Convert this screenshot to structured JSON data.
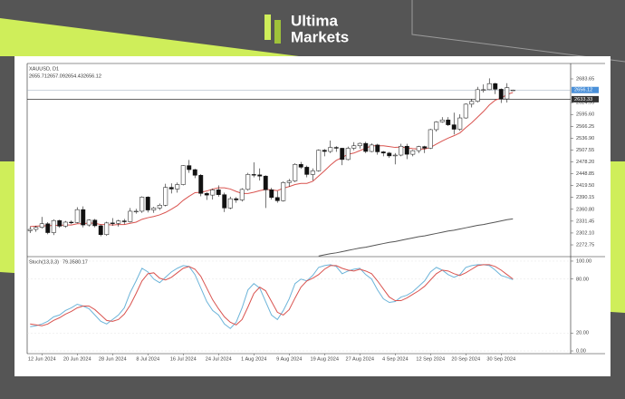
{
  "brand": {
    "line1": "Ultima",
    "line2": "Markets"
  },
  "chart_data": [
    {
      "type": "candlestick",
      "title": "XAUUSD, D1",
      "categories": [
        null,
        null,
        "12 Jun 2024",
        null,
        null,
        null,
        null,
        null,
        "20 Jun 2024",
        null,
        null,
        null,
        null,
        null,
        "28 Jun 2024",
        null,
        null,
        null,
        null,
        null,
        "8 Jul 2024",
        null,
        null,
        null,
        null,
        null,
        "16 Jul 2024",
        null,
        null,
        null,
        null,
        null,
        "24 Jul 2024",
        null,
        null,
        null,
        null,
        null,
        "1 Aug 2024",
        null,
        null,
        null,
        null,
        null,
        "9 Aug 2024",
        null,
        null,
        null,
        null,
        null,
        "19 Aug 2024",
        null,
        null,
        null,
        null,
        null,
        "27 Aug 2024",
        null,
        null,
        null,
        null,
        null,
        "4 Sep 2024",
        null,
        null,
        null,
        null,
        null,
        "12 Sep 2024",
        null,
        null,
        null,
        null,
        null,
        "20 Sep 2024",
        null,
        null,
        null,
        null,
        null,
        "30 Sep 2024",
        null,
        null
      ],
      "ohlc": [
        [
          2308,
          2318,
          2302,
          2311
        ],
        [
          2311,
          2320,
          2305,
          2316
        ],
        [
          2316,
          2342,
          2313,
          2325
        ],
        [
          2325,
          2329,
          2299,
          2303
        ],
        [
          2303,
          2336,
          2297,
          2333
        ],
        [
          2333,
          2335,
          2315,
          2319
        ],
        [
          2319,
          2332,
          2315,
          2329
        ],
        [
          2329,
          2333,
          2324,
          2328
        ],
        [
          2328,
          2366,
          2326,
          2360
        ],
        [
          2360,
          2368,
          2316,
          2322
        ],
        [
          2322,
          2336,
          2318,
          2334
        ],
        [
          2334,
          2337,
          2316,
          2320
        ],
        [
          2320,
          2323,
          2294,
          2298
        ],
        [
          2298,
          2330,
          2295,
          2327
        ],
        [
          2327,
          2339,
          2320,
          2326
        ],
        [
          2326,
          2335,
          2318,
          2332
        ],
        [
          2332,
          2337,
          2324,
          2330
        ],
        [
          2330,
          2364,
          2328,
          2356
        ],
        [
          2356,
          2362,
          2350,
          2356
        ],
        [
          2356,
          2393,
          2352,
          2391
        ],
        [
          2391,
          2393,
          2353,
          2359
        ],
        [
          2359,
          2367,
          2352,
          2364
        ],
        [
          2364,
          2375,
          2359,
          2371
        ],
        [
          2371,
          2424,
          2368,
          2415
        ],
        [
          2415,
          2425,
          2400,
          2411
        ],
        [
          2411,
          2427,
          2402,
          2422
        ],
        [
          2422,
          2470,
          2420,
          2469
        ],
        [
          2469,
          2483,
          2451,
          2459
        ],
        [
          2459,
          2461,
          2438,
          2445
        ],
        [
          2445,
          2448,
          2393,
          2400
        ],
        [
          2400,
          2403,
          2384,
          2396
        ],
        [
          2396,
          2412,
          2385,
          2409
        ],
        [
          2409,
          2420,
          2392,
          2397
        ],
        [
          2397,
          2402,
          2354,
          2364
        ],
        [
          2364,
          2392,
          2361,
          2387
        ],
        [
          2387,
          2391,
          2377,
          2384
        ],
        [
          2384,
          2413,
          2380,
          2410
        ],
        [
          2410,
          2451,
          2407,
          2447
        ],
        [
          2447,
          2477,
          2440,
          2446
        ],
        [
          2446,
          2462,
          2432,
          2443
        ],
        [
          2443,
          2445,
          2364,
          2409
        ],
        [
          2409,
          2414,
          2385,
          2390
        ],
        [
          2390,
          2406,
          2377,
          2382
        ],
        [
          2382,
          2430,
          2380,
          2427
        ],
        [
          2427,
          2436,
          2417,
          2431
        ],
        [
          2431,
          2475,
          2428,
          2472
        ],
        [
          2472,
          2478,
          2461,
          2465
        ],
        [
          2465,
          2469,
          2440,
          2447
        ],
        [
          2447,
          2462,
          2432,
          2456
        ],
        [
          2456,
          2509,
          2454,
          2507
        ],
        [
          2507,
          2510,
          2492,
          2504
        ],
        [
          2504,
          2531,
          2500,
          2514
        ],
        [
          2514,
          2517,
          2503,
          2512
        ],
        [
          2512,
          2513,
          2470,
          2484
        ],
        [
          2484,
          2516,
          2482,
          2512
        ],
        [
          2512,
          2527,
          2507,
          2518
        ],
        [
          2518,
          2526,
          2511,
          2524
        ],
        [
          2524,
          2528,
          2500,
          2504
        ],
        [
          2504,
          2524,
          2502,
          2520
        ],
        [
          2520,
          2523,
          2496,
          2503
        ],
        [
          2503,
          2505,
          2492,
          2500
        ],
        [
          2500,
          2503,
          2488,
          2493
        ],
        [
          2493,
          2500,
          2472,
          2495
        ],
        [
          2495,
          2523,
          2492,
          2517
        ],
        [
          2517,
          2523,
          2485,
          2497
        ],
        [
          2497,
          2508,
          2492,
          2506
        ],
        [
          2506,
          2518,
          2500,
          2516
        ],
        [
          2516,
          2518,
          2500,
          2512
        ],
        [
          2512,
          2560,
          2510,
          2558
        ],
        [
          2558,
          2579,
          2553,
          2577
        ],
        [
          2577,
          2589,
          2575,
          2582
        ],
        [
          2582,
          2589,
          2567,
          2570
        ],
        [
          2570,
          2600,
          2546,
          2559
        ],
        [
          2559,
          2596,
          2555,
          2587
        ],
        [
          2587,
          2623,
          2585,
          2621
        ],
        [
          2621,
          2634,
          2613,
          2628
        ],
        [
          2628,
          2664,
          2625,
          2657
        ],
        [
          2657,
          2670,
          2650,
          2657
        ],
        [
          2657,
          2685,
          2656,
          2672
        ],
        [
          2672,
          2674,
          2646,
          2658
        ],
        [
          2658,
          2660,
          2624,
          2634
        ],
        [
          2634,
          2673,
          2625,
          2662
        ],
        [
          2655.71,
          2657.09,
          2654.43,
          2656.12
        ]
      ],
      "series": [
        {
          "color": "#d9534f",
          "values": [
            2318,
            2319,
            2320,
            2320,
            2321,
            2321,
            2322,
            2322,
            2325,
            2325,
            2327,
            2326,
            2323,
            2323,
            2322,
            2323,
            2323,
            2326,
            2329,
            2336,
            2340,
            2343,
            2347,
            2353,
            2361,
            2370,
            2383,
            2393,
            2402,
            2403,
            2406,
            2411,
            2414,
            2414,
            2411,
            2405,
            2400,
            2400,
            2403,
            2407,
            2410,
            2409,
            2407,
            2413,
            2417,
            2422,
            2425,
            2425,
            2430,
            2443,
            2456,
            2470,
            2482,
            2489,
            2497,
            2500,
            2506,
            2512,
            2518,
            2518,
            2518,
            2516,
            2514,
            2515,
            2513,
            2511,
            2510,
            2510,
            2514,
            2522,
            2530,
            2537,
            2543,
            2550,
            2563,
            2575,
            2589,
            2603,
            2619,
            2631,
            2636,
            2645,
            2650
          ]
        },
        {
          "color": "#555555",
          "values": [
            null,
            null,
            null,
            null,
            null,
            null,
            null,
            null,
            null,
            null,
            null,
            null,
            null,
            null,
            null,
            null,
            null,
            null,
            null,
            null,
            null,
            null,
            null,
            null,
            null,
            null,
            null,
            null,
            null,
            null,
            null,
            null,
            null,
            null,
            null,
            null,
            null,
            null,
            null,
            null,
            null,
            null,
            null,
            null,
            null,
            null,
            null,
            null,
            null,
            2245,
            2248,
            2251,
            2253,
            2256,
            2259,
            2262,
            2265,
            2267,
            2270,
            2273,
            2276,
            2279,
            2281,
            2284,
            2287,
            2290,
            2293,
            2295,
            2298,
            2301,
            2304,
            2307,
            2309,
            2312,
            2315,
            2318,
            2321,
            2323,
            2326,
            2329,
            2332,
            2335,
            2337
          ]
        }
      ],
      "hline": 2633.33,
      "ylim": [
        2243.6,
        2721.8
      ],
      "yticks": [
        2683.65,
        2624.95,
        {
          "value": 2595.6,
          "label": "2595.60"
        },
        2566.25,
        {
          "value": 2536.9,
          "label": "2536.90"
        },
        2507.55,
        {
          "value": 2478.2,
          "label": "2478.20"
        },
        2448.85,
        {
          "value": 2419.5,
          "label": "2419.50"
        },
        2390.15,
        {
          "value": 2360.8,
          "label": "2360.80"
        },
        2331.45,
        {
          "value": 2302.1,
          "label": "2302.10"
        },
        2272.75
      ],
      "up_color": "#ffffff",
      "down_color": "#111111",
      "last_color": "#4a90d9",
      "hline_color": "#333333"
    },
    {
      "type": "line",
      "title": "Stoch(13,3,3)",
      "series": [
        {
          "color": "#6cb4d9",
          "values": [
            27,
            28,
            30,
            33,
            38,
            40,
            45,
            48,
            52,
            50,
            47,
            40,
            33,
            30,
            35,
            40,
            48,
            65,
            78,
            92,
            88,
            80,
            76,
            82,
            88,
            92,
            95,
            94,
            85,
            70,
            55,
            45,
            40,
            30,
            25,
            32,
            48,
            68,
            75,
            70,
            55,
            40,
            35,
            45,
            58,
            75,
            80,
            78,
            84,
            93,
            95,
            96,
            94,
            86,
            89,
            91,
            92,
            85,
            80,
            68,
            58,
            54,
            55,
            60,
            62,
            66,
            72,
            78,
            88,
            93,
            90,
            85,
            82,
            85,
            93,
            95,
            96,
            96,
            95,
            90,
            84,
            82,
            79.35
          ]
        },
        {
          "color": "#d9534f",
          "values": [
            30,
            29,
            28,
            30,
            34,
            37,
            41,
            44,
            48,
            50,
            50,
            46,
            40,
            34,
            33,
            35,
            41,
            51,
            64,
            78,
            86,
            87,
            81,
            79,
            82,
            87,
            92,
            94,
            91,
            83,
            70,
            57,
            47,
            38,
            32,
            29,
            35,
            49,
            64,
            71,
            67,
            55,
            43,
            40,
            46,
            59,
            71,
            78,
            81,
            85,
            91,
            95,
            95,
            92,
            90,
            89,
            91,
            89,
            86,
            78,
            69,
            60,
            56,
            56,
            59,
            63,
            67,
            72,
            79,
            86,
            90,
            89,
            86,
            84,
            87,
            91,
            95,
            96,
            96,
            94,
            90,
            85,
            80.17
          ]
        }
      ],
      "ylim": [
        -3,
        105
      ],
      "yticks": [
        {
          "value": 100,
          "label": "100.00"
        },
        {
          "value": 80,
          "label": "80.00"
        },
        {
          "value": 20,
          "label": "20.00"
        },
        {
          "value": 0,
          "label": "0.00"
        }
      ]
    }
  ]
}
